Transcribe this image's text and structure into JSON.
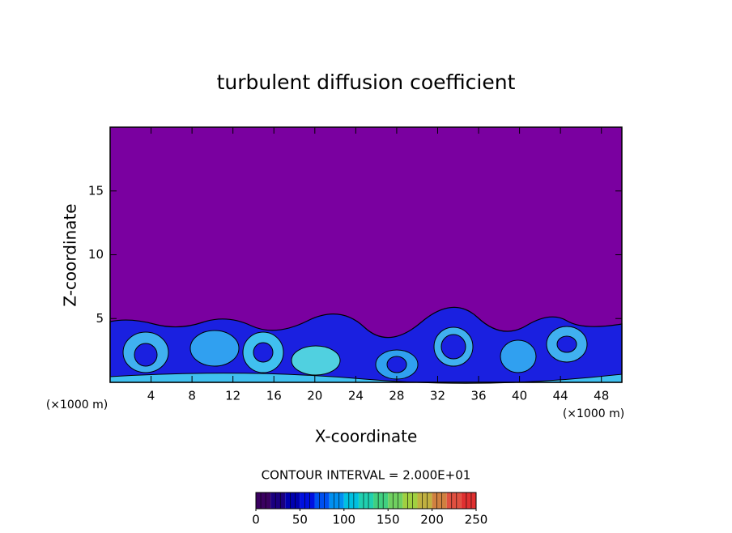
{
  "chart_data": {
    "type": "contour",
    "title": "turbulent diffusion coefficient",
    "xlabel": "X-coordinate",
    "ylabel": "Z-coordinate",
    "xunit": "(×1000 m)",
    "yunit": "(×1000 m)",
    "xlim": [
      0,
      50
    ],
    "xticks": [
      4,
      8,
      12,
      16,
      20,
      24,
      28,
      32,
      36,
      40,
      44,
      48
    ],
    "ylim": [
      0,
      20
    ],
    "yticks": [
      5,
      10,
      15
    ],
    "color": "#7a00a0",
    "contour_interval": "CONTOUR INTERVAL = 2.000E+01",
    "colorbar": {
      "lim": [
        0,
        250
      ],
      "ticks": [
        0,
        50,
        100,
        150,
        200,
        250
      ],
      "colors": [
        "#3a0060",
        "#1a0080",
        "#0000b0",
        "#0010e0",
        "#0050f0",
        "#0090f0",
        "#00c0e0",
        "#20d0b0",
        "#40d080",
        "#70d060",
        "#a0d040",
        "#c0b040",
        "#d08040",
        "#e05040",
        "#e03030"
      ]
    }
  }
}
